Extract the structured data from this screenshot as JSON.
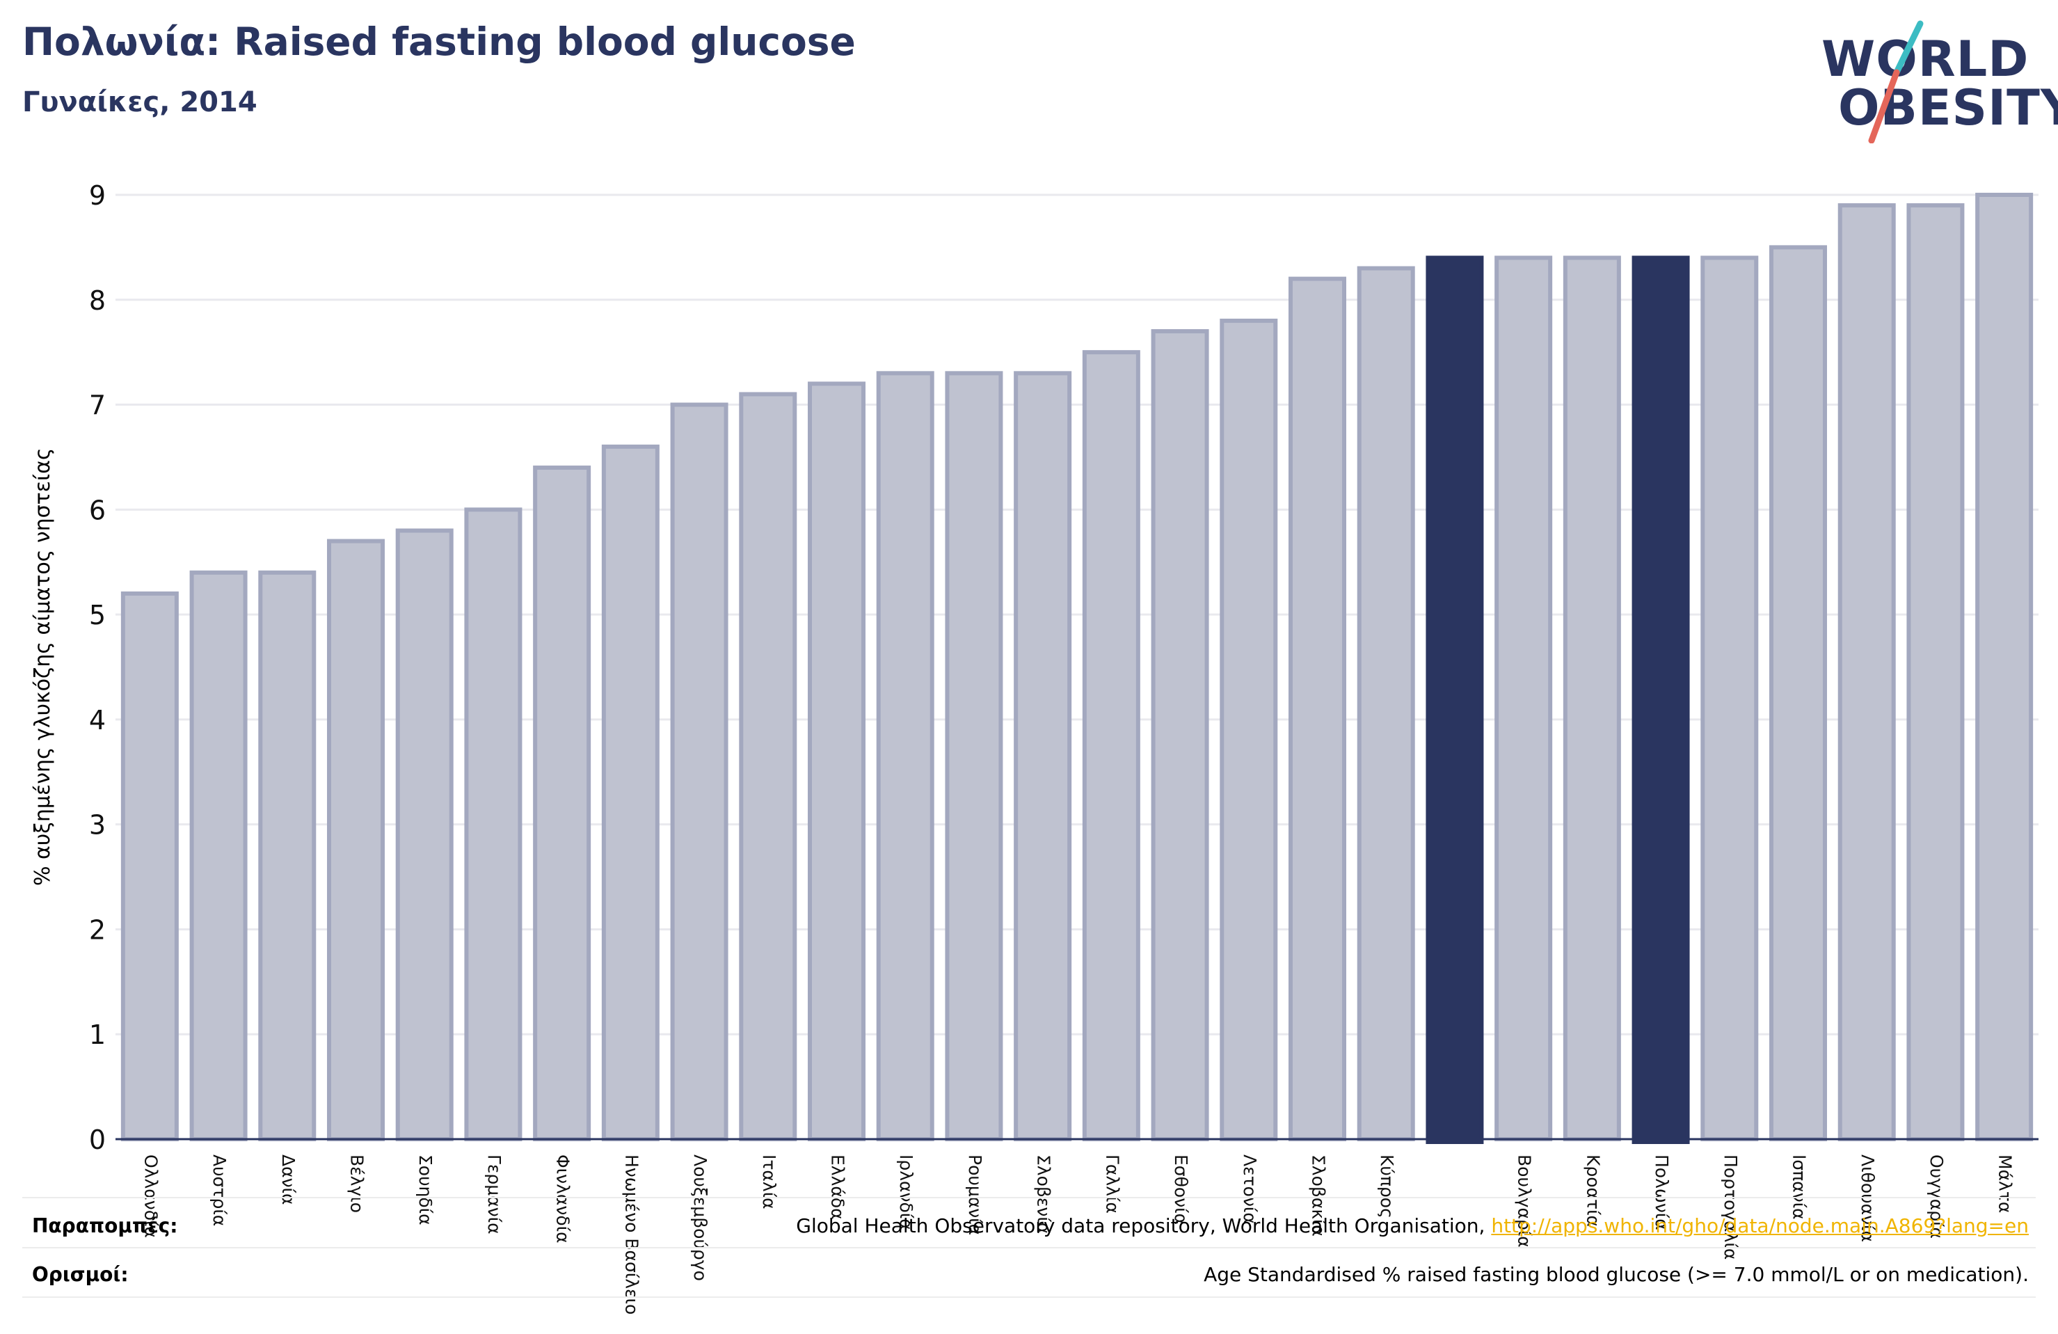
{
  "header": {
    "title": "Πολωνία: Raised fasting blood glucose",
    "subtitle": "Γυναίκες, 2014"
  },
  "logo": {
    "line1": "WORLD",
    "line2": "OBESITY",
    "colors": {
      "text": "#2a3560",
      "slash_teal": "#3cbcc3",
      "slash_red": "#e4665a"
    }
  },
  "chart_data": {
    "type": "bar",
    "ylabel": "% αυξημένης γλυκόζης αίματος νηστείας",
    "ylim": [
      0,
      9
    ],
    "yticks": [
      0,
      1,
      2,
      3,
      4,
      5,
      6,
      7,
      8,
      9
    ],
    "grid": true,
    "categories": [
      "Ολλανδία",
      "Αυστρία",
      "Δανία",
      "Βέλγιο",
      "Σουηδία",
      "Γερμανία",
      "Φινλανδία",
      "Ηνωμένο Βασίλειο",
      "Λουξεμβούργο",
      "Ιταλία",
      "Ελλάδα",
      "Ιρλανδία",
      "Ρουμανία",
      "Σλοβενία",
      "Γαλλία",
      "Εσθονία",
      "Λετονία",
      "Σλοβακία",
      "Κύπρος",
      "",
      "Βουλγαρία",
      "Κροατία",
      "Πολωνία",
      "Πορτογαλία",
      "Ισπανία",
      "Λιθουανία",
      "Ουγγαρία",
      "Μάλτα"
    ],
    "values": [
      5.2,
      5.4,
      5.4,
      5.7,
      5.8,
      6.0,
      6.4,
      6.6,
      7.0,
      7.1,
      7.2,
      7.3,
      7.3,
      7.3,
      7.5,
      7.7,
      7.8,
      8.2,
      8.3,
      8.4,
      8.4,
      8.4,
      8.4,
      8.4,
      8.5,
      8.9,
      8.9,
      9.0
    ],
    "highlight": [
      false,
      false,
      false,
      false,
      false,
      false,
      false,
      false,
      false,
      false,
      false,
      false,
      false,
      false,
      false,
      false,
      false,
      false,
      false,
      true,
      false,
      false,
      true,
      false,
      false,
      false,
      false,
      false
    ],
    "colors": {
      "bar": "#bfc2d0",
      "bar_edge": "#a3a8bf",
      "highlight": "#2a3560"
    }
  },
  "footer": {
    "sources_label": "Παραπομπές:",
    "sources_text": "Global Health Observatory data repository, World Health Organisation, ",
    "sources_link": "http://apps.who.int/gho/data/node.main.A869?lang=en",
    "definitions_label": "Ορισμοί:",
    "definitions_text": "Age Standardised % raised fasting blood glucose (>= 7.0 mmol/L or on medication)."
  }
}
